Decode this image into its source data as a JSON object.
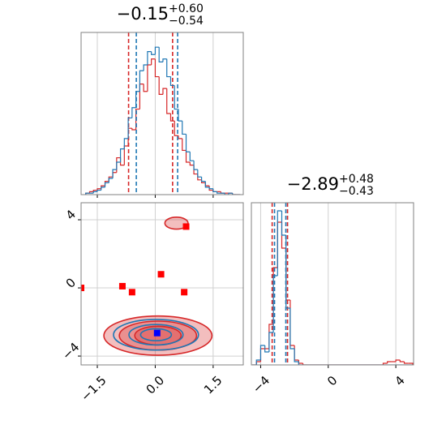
{
  "chart_data": [
    {
      "type": "histogram",
      "title": "−0.15",
      "title_upper": "+0.60",
      "title_lower": "−0.54",
      "bins": [
        -1.8,
        -1.7,
        -1.6,
        -1.5,
        -1.4,
        -1.3,
        -1.2,
        -1.1,
        -1.0,
        -0.9,
        -0.8,
        -0.7,
        -0.6,
        -0.5,
        -0.4,
        -0.3,
        -0.2,
        -0.1,
        0.0,
        0.1,
        0.2,
        0.3,
        0.4,
        0.5,
        0.6,
        0.7,
        0.8,
        0.9,
        1.0,
        1.1,
        1.2,
        1.3,
        1.4,
        1.5,
        1.6,
        1.7,
        1.8,
        1.9,
        2.0,
        2.1,
        2.2
      ],
      "series": [
        {
          "color": "#d62728",
          "values": [
            1,
            2,
            3,
            4,
            6,
            9,
            12,
            15,
            25,
            20,
            33,
            45,
            44,
            58,
            75,
            70,
            88,
            92,
            80,
            68,
            72,
            55,
            50,
            40,
            38,
            30,
            22,
            20,
            14,
            10,
            8,
            6,
            3,
            2,
            2,
            1,
            1,
            1,
            0,
            0
          ],
          "quantiles": [
            -0.69,
            0.45
          ]
        },
        {
          "color": "#1f77b4",
          "values": [
            1,
            1,
            2,
            3,
            5,
            8,
            11,
            17,
            22,
            31,
            38,
            52,
            59,
            70,
            84,
            88,
            97,
            95,
            100,
            90,
            92,
            80,
            74,
            58,
            50,
            41,
            29,
            23,
            17,
            12,
            9,
            5,
            4,
            2,
            1,
            1,
            0,
            1,
            0,
            0
          ],
          "quantiles": [
            -0.49,
            0.58
          ]
        }
      ],
      "xlim": [
        -1.92,
        2.28
      ],
      "ylim": [
        0,
        110
      ],
      "xticks": [
        {
          "value": -1.5,
          "label": "−1.5"
        },
        {
          "value": 0,
          "label": "0.0"
        },
        {
          "value": 1.5,
          "label": "1.5"
        }
      ],
      "grid": true
    },
    {
      "type": "contour",
      "series": [
        {
          "color": "#d62728",
          "fill": true,
          "x_center": 0.07,
          "y_center": -2.8,
          "x_halfwidths": [
            1.4,
            1.0,
            0.6
          ],
          "y_halfwidths": [
            1.15,
            0.85,
            0.55
          ]
        },
        {
          "color": "#d62728",
          "fill": true,
          "x_center": 0.55,
          "y_center": 3.8,
          "x_halfwidths": [
            0.3
          ],
          "y_halfwidths": [
            0.35
          ]
        },
        {
          "color": "#1f77b4",
          "fill": false,
          "x_center": 0.02,
          "y_center": -2.75,
          "x_halfwidths": [
            1.1,
            0.7,
            0.4
          ],
          "y_halfwidths": [
            0.9,
            0.6,
            0.35
          ]
        }
      ],
      "points": [
        {
          "color": "#ff0000",
          "x": [
            -1.92,
            -0.85,
            -0.6,
            0.15,
            0.75,
            0.8
          ],
          "y": [
            0.0,
            0.1,
            -0.25,
            0.8,
            -0.25,
            3.6
          ]
        },
        {
          "color": "#0000ff",
          "x": [
            0.05
          ],
          "y": [
            -2.65
          ]
        }
      ],
      "xlim": [
        -1.92,
        2.28
      ],
      "ylim": [
        -4.52,
        5
      ],
      "xticks": [
        {
          "value": -1.5,
          "label": "−1.5"
        },
        {
          "value": 0,
          "label": "0.0"
        },
        {
          "value": 1.5,
          "label": "1.5"
        }
      ],
      "yticks": [
        {
          "value": -4,
          "label": "−4"
        },
        0,
        4
      ],
      "grid": true
    },
    {
      "type": "histogram",
      "title": "−2.89",
      "title_upper": "+0.48",
      "title_lower": "−0.43",
      "bins": [
        -4.5,
        -4.25,
        -4.0,
        -3.75,
        -3.5,
        -3.25,
        -3.0,
        -2.75,
        -2.5,
        -2.25,
        -2.0,
        -1.75,
        -1.5,
        -1.25,
        -1.0,
        -0.75,
        -0.5,
        -0.25,
        0.0,
        0.25,
        0.5,
        0.75,
        1.0,
        1.25,
        1.5,
        1.75,
        2.0,
        2.25,
        2.5,
        2.75,
        3.0,
        3.25,
        3.5,
        3.75,
        4.0,
        4.25,
        4.5,
        4.75,
        5.0
      ],
      "series": [
        {
          "color": "#d62728",
          "values": [
            0,
            2,
            10,
            10,
            25,
            60,
            88,
            72,
            40,
            12,
            3,
            1,
            0,
            0,
            0,
            0,
            0,
            0,
            0,
            0,
            0,
            0,
            0,
            0,
            0,
            0,
            0,
            0,
            0,
            0,
            0,
            1,
            2,
            2,
            3,
            2,
            1,
            1
          ],
          "quantiles": [
            -3.32,
            -2.41
          ]
        },
        {
          "color": "#1f77b4",
          "values": [
            0,
            3,
            12,
            8,
            20,
            55,
            95,
            80,
            35,
            10,
            2,
            0,
            0,
            0,
            0,
            0,
            0,
            0,
            0,
            0,
            0,
            0,
            0,
            0,
            0,
            0,
            0,
            0,
            0,
            0,
            0,
            0,
            0,
            0,
            0,
            0,
            0,
            0
          ],
          "quantiles": [
            -3.18,
            -2.51
          ]
        }
      ],
      "xlim": [
        -4.55,
        5.05
      ],
      "ylim": [
        0,
        100
      ],
      "xticks": [
        {
          "value": -4,
          "label": "−4"
        },
        0,
        4
      ],
      "grid": true
    }
  ]
}
